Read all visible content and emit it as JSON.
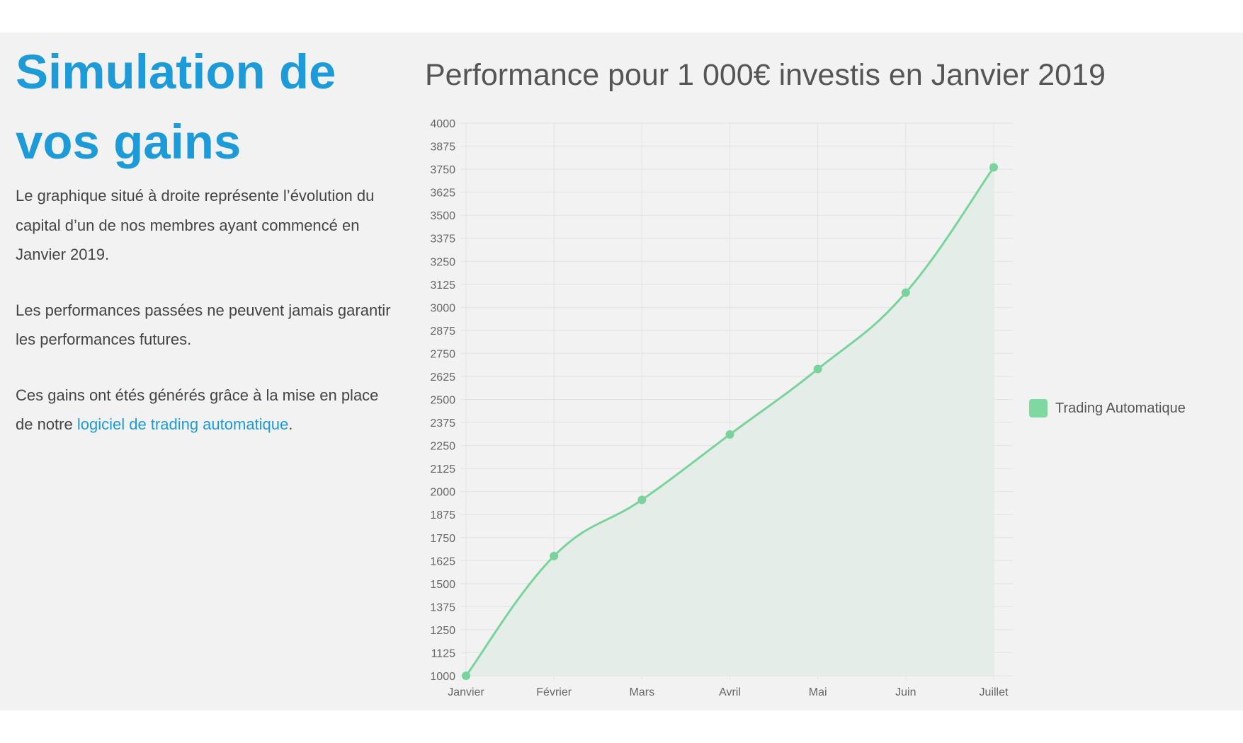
{
  "section": {
    "title_line1": "Simulation de",
    "title_line2": "vos gains",
    "paragraph1": "Le graphique situé à droite représente l’évolution du capital d’un de nos membres ayant commencé en Janvier 2019.",
    "paragraph2": "Les performances passées ne peuvent jamais garantir les performances futures.",
    "paragraph3_before": "Ces gains ont étés générés grâce à la mise en place de notre ",
    "paragraph3_link": "logiciel de trading automatique",
    "paragraph3_after": "."
  },
  "colors": {
    "accent": "#1d9bd8",
    "series_line": "#78d49b",
    "series_fill": "#e3ece7",
    "background": "#f2f2f2"
  },
  "chart_data": {
    "type": "line",
    "title": "Performance pour 1 000€ investis en Janvier 2019",
    "xlabel": "",
    "ylabel": "",
    "categories": [
      "Janvier",
      "Février",
      "Mars",
      "Avril",
      "Mai",
      "Juin",
      "Juillet"
    ],
    "series": [
      {
        "name": "Trading Automatique",
        "values": [
          1000,
          1650,
          1955,
          2310,
          2665,
          3080,
          3760
        ]
      }
    ],
    "ylim": [
      1000,
      4000
    ],
    "y_ticks": [
      1000,
      1125,
      1250,
      1375,
      1500,
      1625,
      1750,
      1875,
      2000,
      2125,
      2250,
      2375,
      2500,
      2625,
      2750,
      2875,
      3000,
      3125,
      3250,
      3375,
      3500,
      3625,
      3750,
      3875,
      4000
    ],
    "grid": true,
    "fill_area": true,
    "smooth": true,
    "legend_position": "right"
  }
}
